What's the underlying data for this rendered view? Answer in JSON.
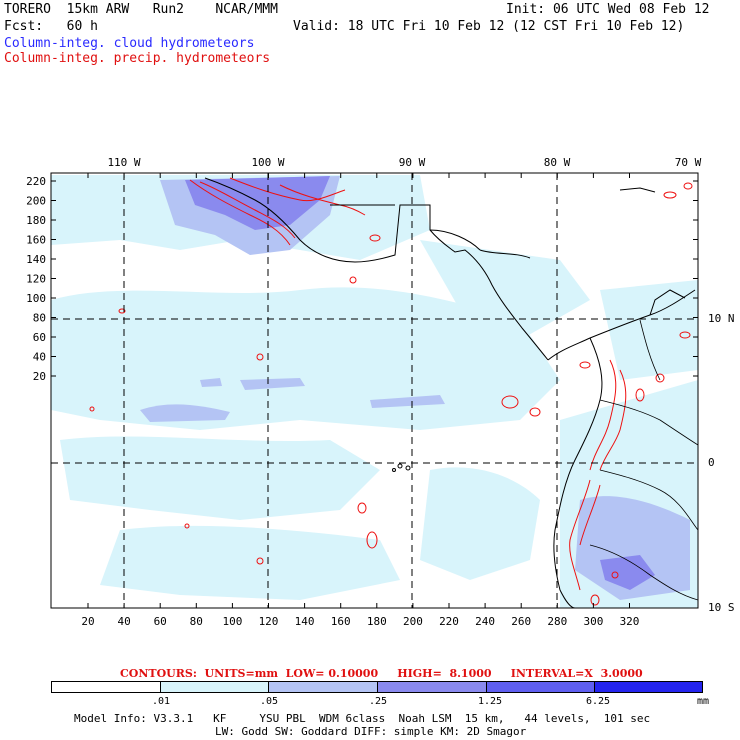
{
  "header": {
    "model": "TORERO  15km ARW   Run2    NCAR/MMM",
    "init": "Init: 06 UTC Wed 08 Feb 12",
    "fcst": "Fcst:   60 h",
    "valid": "Valid: 18 UTC Fri 10 Feb 12 (12 CST Fri 10 Feb 12)",
    "field1": "Column-integ. cloud hydrometeors",
    "field2": "Column-integ. precip. hydrometeors"
  },
  "map": {
    "top_lon_labels": [
      "110 W",
      "100 W",
      "90 W",
      "80 W",
      "70 W"
    ],
    "right_lat_labels": [
      "10 N",
      "0",
      "10 S"
    ],
    "y_ticks": [
      "220",
      "200",
      "180",
      "160",
      "140",
      "120",
      "100",
      "80",
      "60",
      "40",
      "20"
    ],
    "x_ticks": [
      "20",
      "40",
      "60",
      "80",
      "100",
      "120",
      "140",
      "160",
      "180",
      "200",
      "220",
      "240",
      "260",
      "280",
      "300",
      "320"
    ]
  },
  "contour_info": "CONTOURS:  UNITS=mm  LOW= 0.10000     HIGH=  8.1000     INTERVAL=X  3.0000",
  "legend": {
    "labels": [
      ".01",
      ".05",
      ".25",
      "1.25",
      "6.25"
    ],
    "unit": "mm",
    "colors": [
      "#ffffff",
      "#d8f4fb",
      "#b4c4f4",
      "#8a8aee",
      "#5f5ff0",
      "#2424ee"
    ]
  },
  "footer": {
    "line1": "Model Info: V3.3.1   KF     YSU PBL  WDM 6class  Noah LSM  15 km,   44 levels,  101 sec",
    "line2": "LW: Godd SW: Goddard DIFF: simple KM: 2D Smagor"
  }
}
